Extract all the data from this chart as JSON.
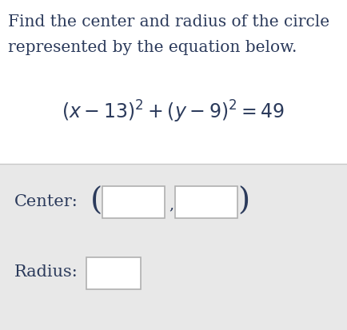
{
  "title_line1": "Find the center and radius of the circle",
  "title_line2": "represented by the equation below.",
  "equation": "$(x - 13)^2 + (y - 9)^2 = 49$",
  "center_label": "Center:",
  "radius_label": "Radius:",
  "bg_white": "#ffffff",
  "bg_gray": "#e8e8e8",
  "text_color": "#2b3a5b",
  "box_fill": "#ffffff",
  "box_edge": "#b0b0b0",
  "sep_line_color": "#c8c8c8",
  "title_fontsize": 14.5,
  "equation_fontsize": 17,
  "label_fontsize": 15,
  "paren_fontsize": 28
}
